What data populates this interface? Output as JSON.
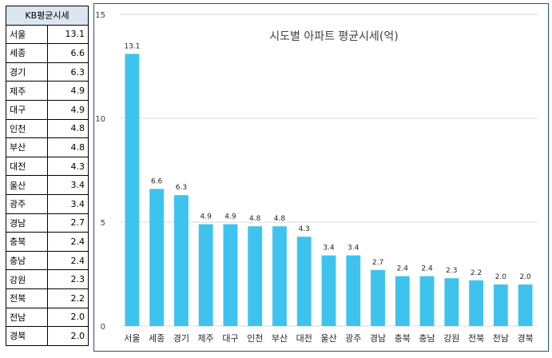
{
  "table": {
    "header": "KB평균시세",
    "rows": [
      {
        "region": "서울",
        "value": "13.1"
      },
      {
        "region": "세종",
        "value": "6.6"
      },
      {
        "region": "경기",
        "value": "6.3"
      },
      {
        "region": "제주",
        "value": "4.9"
      },
      {
        "region": "대구",
        "value": "4.9"
      },
      {
        "region": "인천",
        "value": "4.8"
      },
      {
        "region": "부산",
        "value": "4.8"
      },
      {
        "region": "대전",
        "value": "4.3"
      },
      {
        "region": "울산",
        "value": "3.4"
      },
      {
        "region": "광주",
        "value": "3.4"
      },
      {
        "region": "경남",
        "value": "2.7"
      },
      {
        "region": "충북",
        "value": "2.4"
      },
      {
        "region": "충남",
        "value": "2.4"
      },
      {
        "region": "강원",
        "value": "2.3"
      },
      {
        "region": "전북",
        "value": "2.2"
      },
      {
        "region": "전남",
        "value": "2.0"
      },
      {
        "region": "경북",
        "value": "2.0"
      }
    ]
  },
  "chart_data": {
    "type": "bar",
    "title": "시도별 아파트 평균시세(억)",
    "categories": [
      "서울",
      "세종",
      "경기",
      "제주",
      "대구",
      "인천",
      "부산",
      "대전",
      "울산",
      "광주",
      "경남",
      "충북",
      "충남",
      "강원",
      "전북",
      "전남",
      "경북"
    ],
    "values": [
      13.1,
      6.6,
      6.3,
      4.9,
      4.9,
      4.8,
      4.8,
      4.3,
      3.4,
      3.4,
      2.7,
      2.4,
      2.4,
      2.3,
      2.2,
      2.0,
      2.0
    ],
    "value_labels": [
      "13.1",
      "6.6",
      "6.3",
      "4.9",
      "4.9",
      "4.8",
      "4.8",
      "4.3",
      "3.4",
      "3.4",
      "2.7",
      "2.4",
      "2.4",
      "2.3",
      "2.2",
      "2.0",
      "2.0"
    ],
    "ylim": [
      0,
      15
    ],
    "yticks": [
      0,
      5,
      10,
      15
    ],
    "ytick_labels": [
      "0",
      "5",
      "10",
      "15"
    ],
    "grid": true,
    "bar_color": "#3ec3ef",
    "grid_color": "#d9d9d9",
    "border_color": "#1f4e9a",
    "table_header_color": "#dce6f1"
  }
}
